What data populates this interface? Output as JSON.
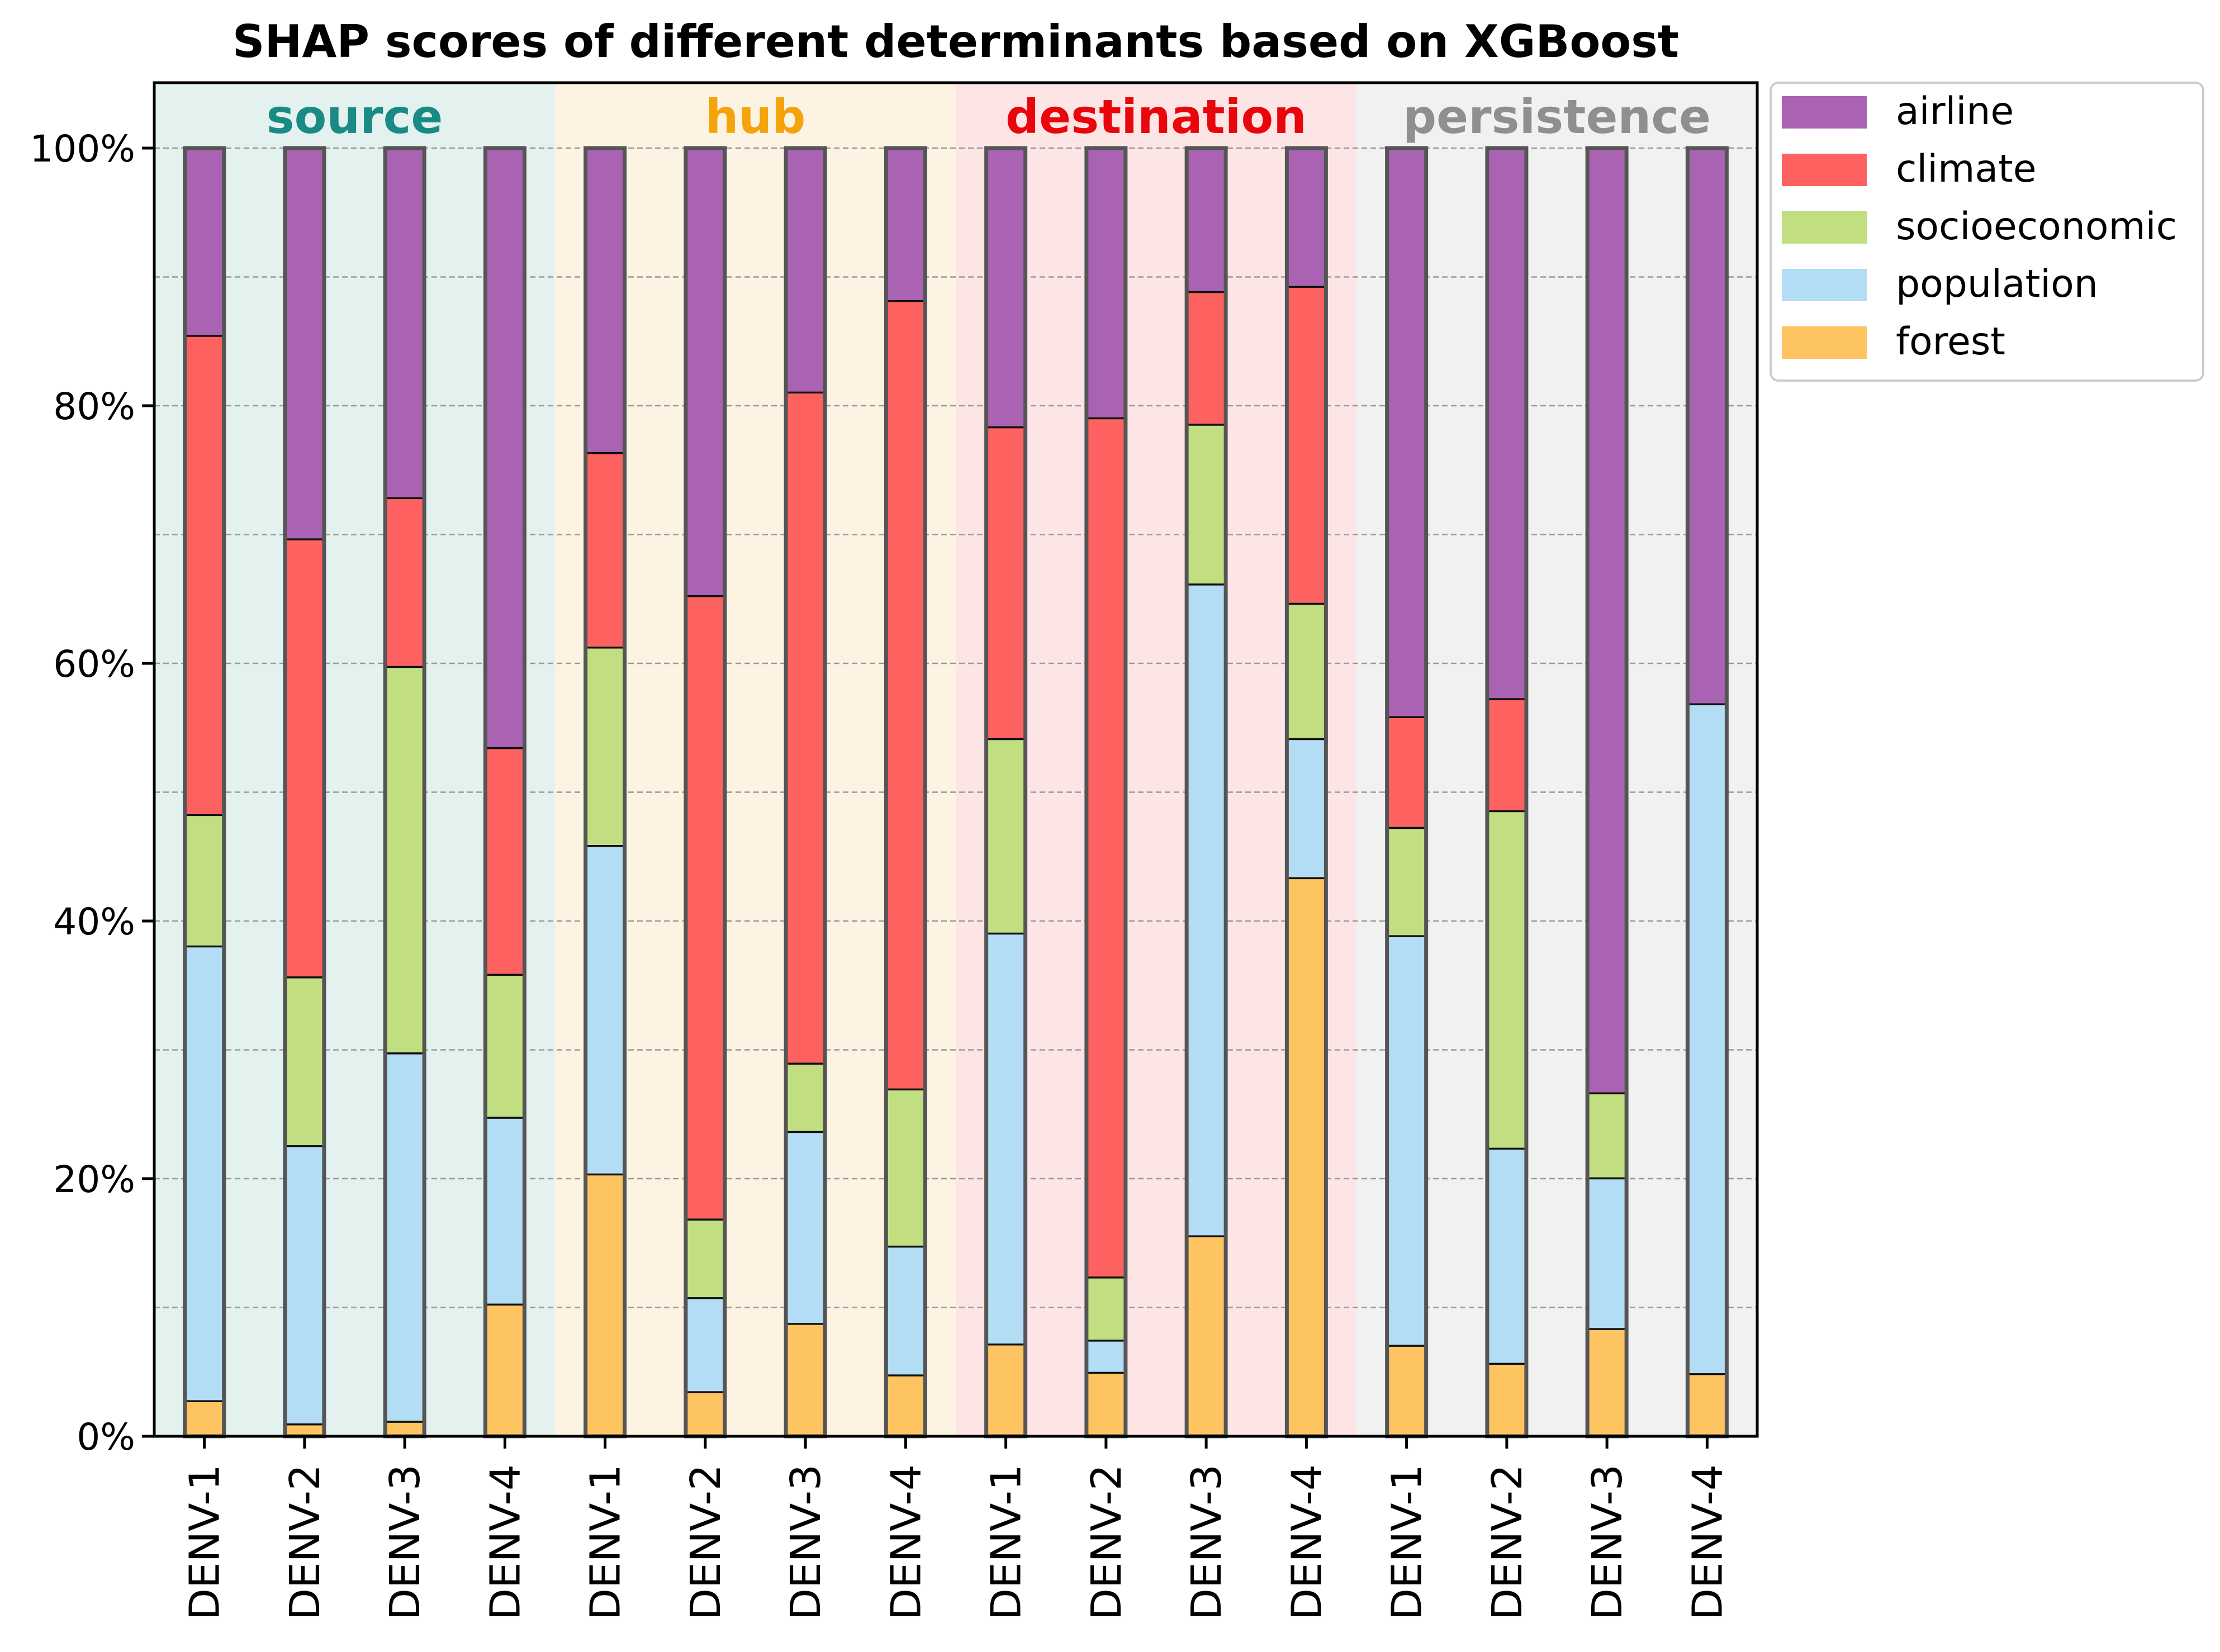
{
  "chart_data": {
    "type": "bar",
    "stacked": true,
    "title": "SHAP scores of different determinants based on XGBoost",
    "xlabel": "",
    "ylabel": "",
    "ylim": [
      0,
      105
    ],
    "y_tick_labels": [
      "0%",
      "20%",
      "40%",
      "60%",
      "80%",
      "100%"
    ],
    "y_tick_values": [
      0,
      20,
      40,
      60,
      80,
      100
    ],
    "grid": "dashed horizontal lines every 10%",
    "legend_position": "outside top-right",
    "groups": [
      {
        "name": "source",
        "color": "#1a8a84",
        "bg": "#e3f1ef"
      },
      {
        "name": "hub",
        "color": "#f5a30a",
        "bg": "#fdf3e2"
      },
      {
        "name": "destination",
        "color": "#e8060c",
        "bg": "#fde5e6"
      },
      {
        "name": "persistence",
        "color": "#8f8f8f",
        "bg": "#f1f1f1"
      }
    ],
    "categories": [
      "DENV-1",
      "DENV-2",
      "DENV-3",
      "DENV-4",
      "DENV-1",
      "DENV-2",
      "DENV-3",
      "DENV-4",
      "DENV-1",
      "DENV-2",
      "DENV-3",
      "DENV-4",
      "DENV-1",
      "DENV-2",
      "DENV-3",
      "DENV-4"
    ],
    "series": [
      {
        "name": "forest",
        "color": "#fdc461",
        "values": [
          2.8,
          1.0,
          1.2,
          10.3,
          20.4,
          3.5,
          8.8,
          4.8,
          7.2,
          5.0,
          15.6,
          43.4,
          7.1,
          5.7,
          8.4,
          4.9
        ]
      },
      {
        "name": "population",
        "color": "#b3dcf5",
        "values": [
          35.3,
          21.6,
          28.6,
          14.5,
          25.5,
          7.3,
          14.9,
          10.0,
          31.9,
          2.5,
          50.6,
          10.8,
          31.8,
          16.7,
          11.7,
          52.0
        ]
      },
      {
        "name": "socioeconomic",
        "color": "#c1df81",
        "values": [
          10.2,
          13.1,
          30.0,
          11.1,
          15.4,
          6.1,
          5.3,
          12.2,
          15.1,
          4.9,
          12.4,
          10.5,
          8.4,
          26.2,
          6.6,
          0.0
        ]
      },
      {
        "name": "climate",
        "color": "#fd6260",
        "values": [
          37.2,
          34.0,
          13.1,
          17.6,
          15.1,
          48.4,
          52.1,
          61.2,
          24.2,
          66.7,
          10.3,
          24.6,
          8.6,
          8.7,
          0.0,
          0.0
        ]
      },
      {
        "name": "airline",
        "color": "#a963b2",
        "values": [
          14.5,
          30.3,
          27.1,
          46.5,
          23.6,
          34.7,
          18.9,
          11.8,
          21.6,
          20.9,
          11.1,
          10.7,
          44.1,
          42.7,
          73.3,
          43.1
        ]
      }
    ]
  }
}
